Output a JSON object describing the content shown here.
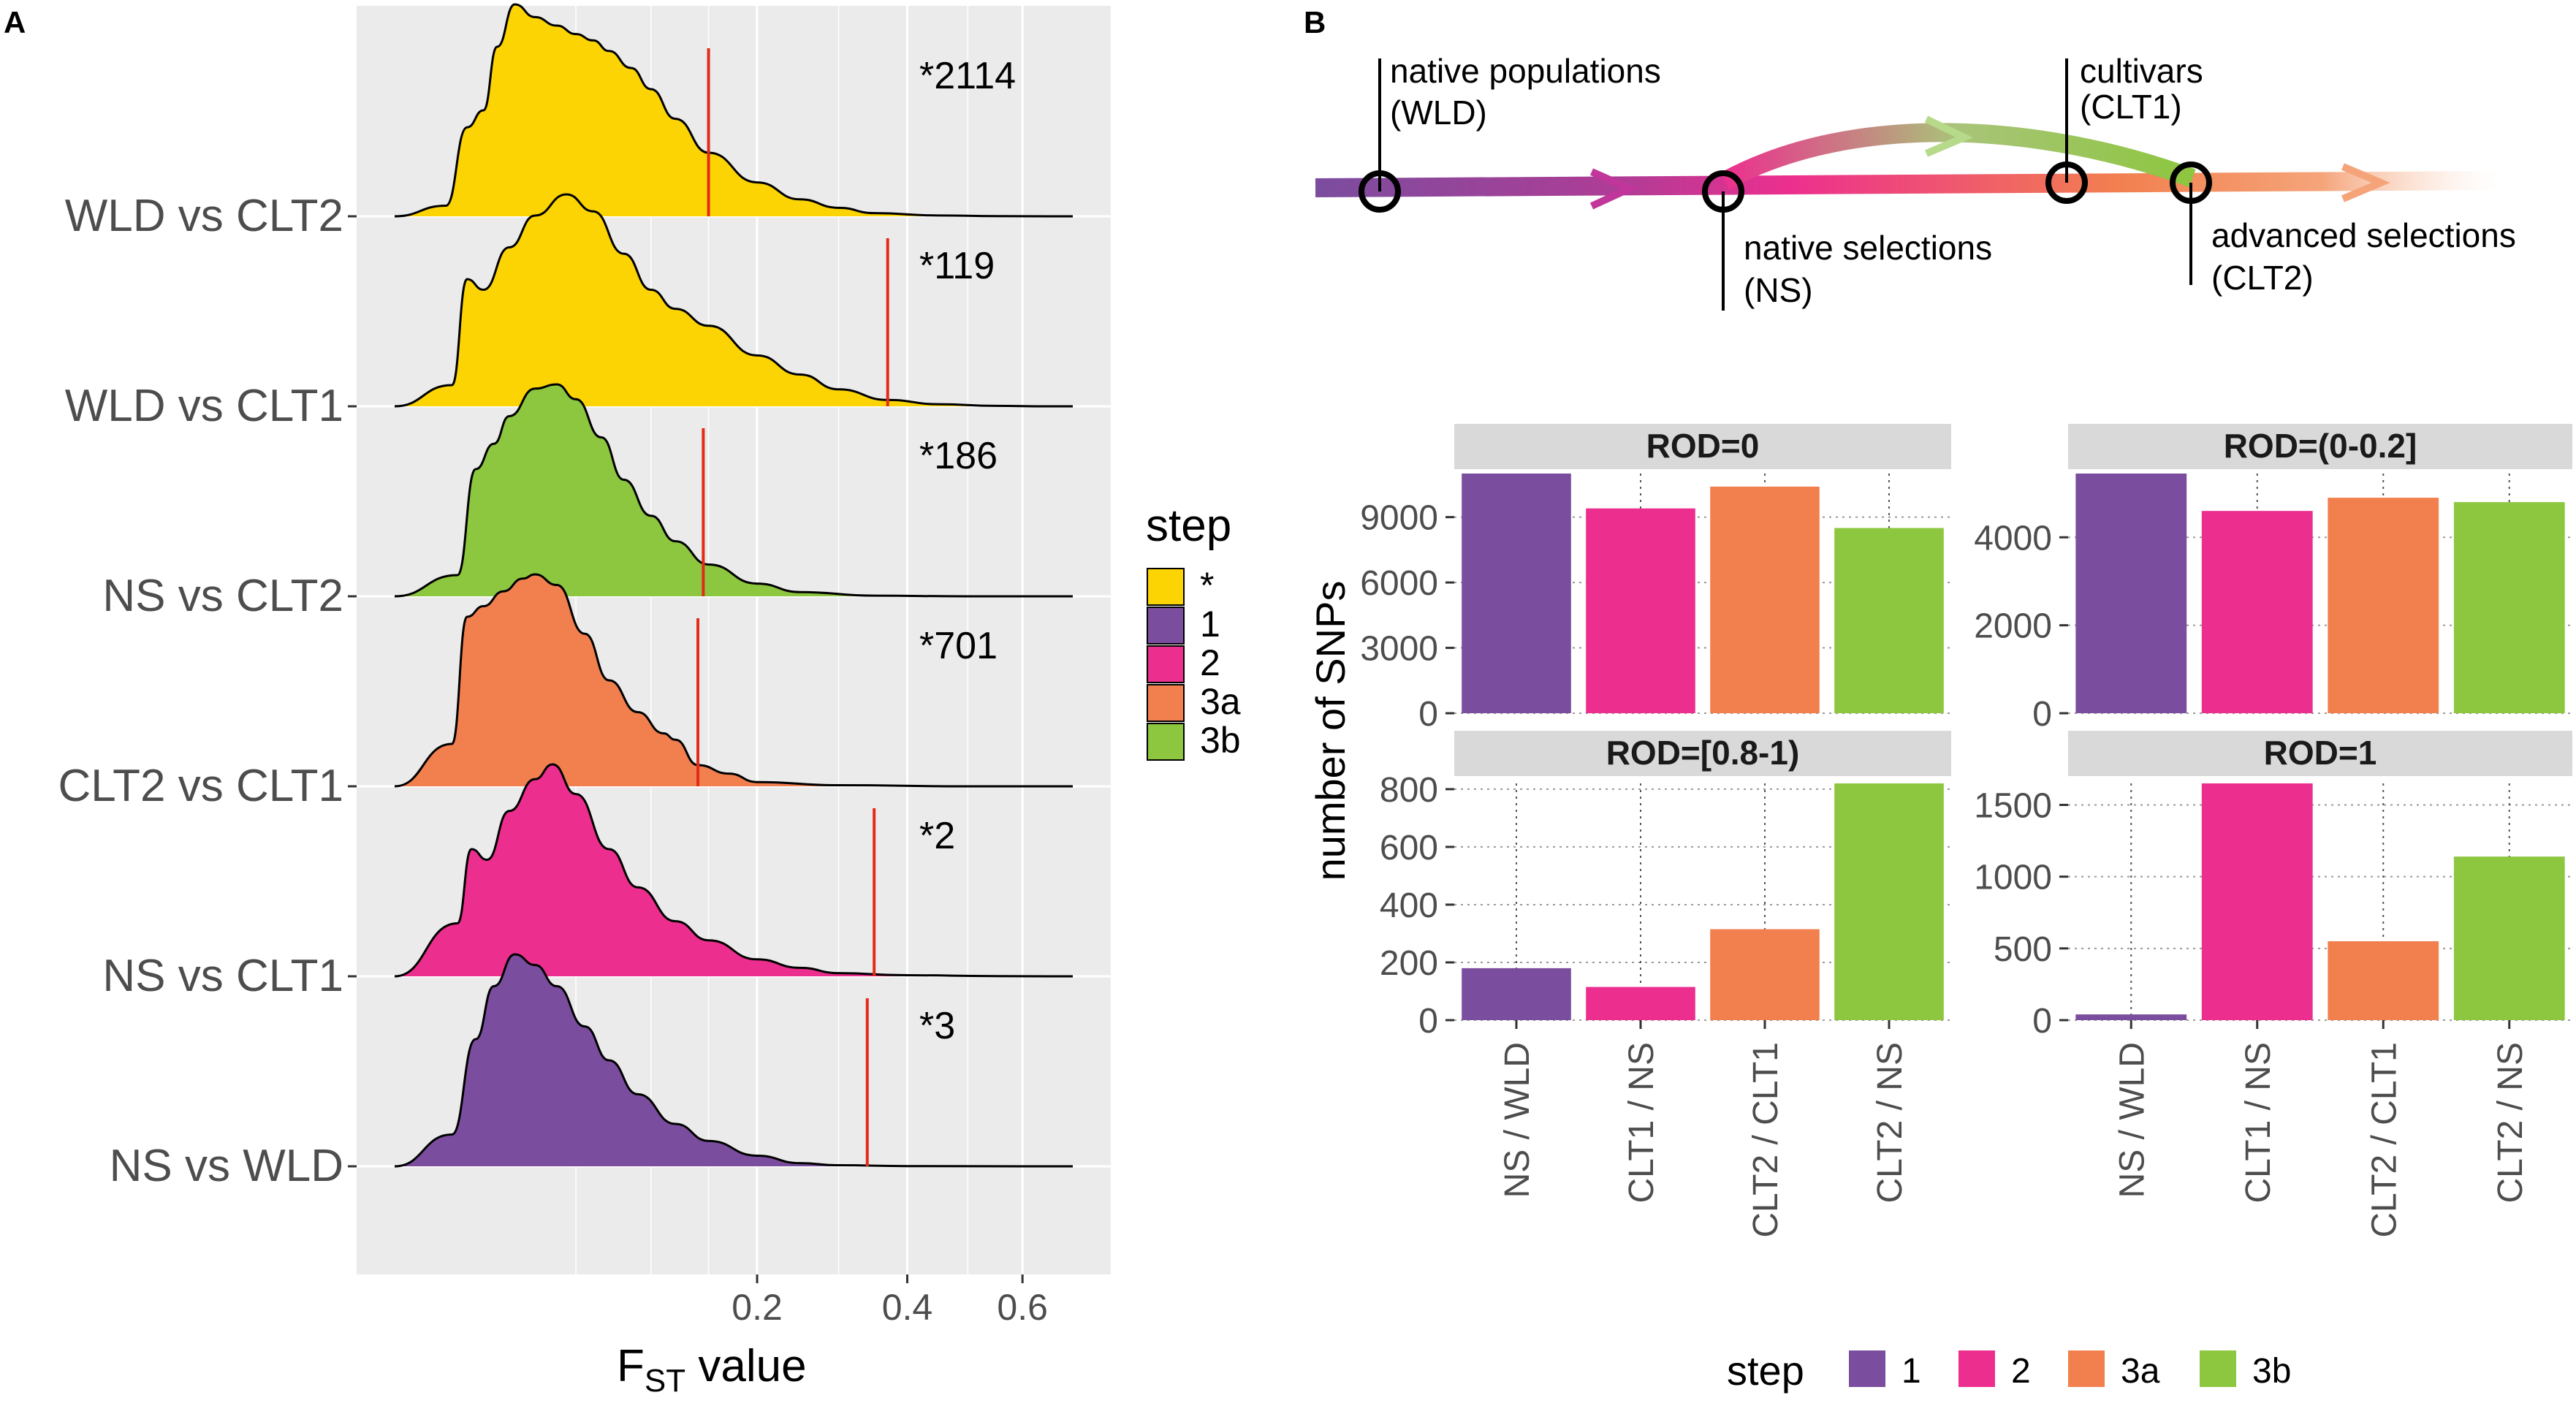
{
  "panel_a": {
    "label": "A",
    "xlabel_main": "F",
    "xlabel_sub": "ST",
    "xlabel_rest": " value",
    "x_ticks": [
      "0.2",
      "0.4",
      "0.6"
    ]
  },
  "panel_b": {
    "label": "B",
    "timeline": {
      "native_populations": "native populations",
      "wld": "(WLD)",
      "cultivars": "cultivars",
      "clt1": "(CLT1)",
      "native_selections": "native selections",
      "ns": "(NS)",
      "advanced_selections": "advanced selections",
      "clt2": "(CLT2)"
    },
    "ylabel": "number of SNPs",
    "legend_title": "step"
  },
  "legend_a": {
    "title": "step",
    "items": [
      {
        "label": "*",
        "color": "#fcd404"
      },
      {
        "label": "1",
        "color": "#7b4d9e"
      },
      {
        "label": "2",
        "color": "#ec2f8e"
      },
      {
        "label": "3a",
        "color": "#f2804f"
      },
      {
        "label": "3b",
        "color": "#8dc63f"
      }
    ]
  },
  "legend_b": {
    "items": [
      {
        "label": "1",
        "color": "#7b4d9e"
      },
      {
        "label": "2",
        "color": "#ec2f8e"
      },
      {
        "label": "3a",
        "color": "#f2804f"
      },
      {
        "label": "3b",
        "color": "#8dc63f"
      }
    ]
  },
  "chart_data": [
    {
      "type": "area",
      "title": "",
      "xlabel": "FST value",
      "x_scale": "sqrt",
      "xlim": [
        0,
        0.7
      ],
      "x_ticks": [
        0.2,
        0.4,
        0.6
      ],
      "series": [
        {
          "name": "WLD vs CLT2",
          "step": "*",
          "color": "#fcd404",
          "threshold": 0.15,
          "annotation": "*2114",
          "peak_x": 0.022,
          "density": [
            [
              0.0,
              0
            ],
            [
              0.004,
              0.05
            ],
            [
              0.008,
              0.42
            ],
            [
              0.012,
              0.5
            ],
            [
              0.016,
              0.8
            ],
            [
              0.022,
              1.0
            ],
            [
              0.03,
              0.94
            ],
            [
              0.04,
              0.9
            ],
            [
              0.05,
              0.86
            ],
            [
              0.06,
              0.83
            ],
            [
              0.07,
              0.78
            ],
            [
              0.085,
              0.7
            ],
            [
              0.1,
              0.6
            ],
            [
              0.12,
              0.46
            ],
            [
              0.15,
              0.3
            ],
            [
              0.2,
              0.16
            ],
            [
              0.25,
              0.08
            ],
            [
              0.3,
              0.04
            ],
            [
              0.35,
              0.015
            ],
            [
              0.45,
              0.004
            ],
            [
              0.55,
              0.001
            ],
            [
              0.65,
              0
            ]
          ]
        },
        {
          "name": "WLD vs CLT1",
          "step": "*",
          "color": "#fcd404",
          "threshold": 0.37,
          "annotation": "*119",
          "peak_x": 0.045,
          "density": [
            [
              0.0,
              0
            ],
            [
              0.005,
              0.1
            ],
            [
              0.008,
              0.6
            ],
            [
              0.012,
              0.55
            ],
            [
              0.02,
              0.75
            ],
            [
              0.03,
              0.9
            ],
            [
              0.045,
              1.0
            ],
            [
              0.06,
              0.92
            ],
            [
              0.08,
              0.72
            ],
            [
              0.1,
              0.55
            ],
            [
              0.12,
              0.46
            ],
            [
              0.15,
              0.38
            ],
            [
              0.2,
              0.24
            ],
            [
              0.25,
              0.15
            ],
            [
              0.3,
              0.08
            ],
            [
              0.37,
              0.03
            ],
            [
              0.45,
              0.01
            ],
            [
              0.55,
              0.002
            ],
            [
              0.65,
              0
            ]
          ]
        },
        {
          "name": "NS vs CLT2",
          "step": "3b",
          "color": "#8dc63f",
          "threshold": 0.145,
          "annotation": "*186",
          "peak_x": 0.038,
          "density": [
            [
              0.0,
              0
            ],
            [
              0.006,
              0.1
            ],
            [
              0.01,
              0.6
            ],
            [
              0.015,
              0.72
            ],
            [
              0.02,
              0.85
            ],
            [
              0.03,
              0.98
            ],
            [
              0.04,
              1.0
            ],
            [
              0.05,
              0.93
            ],
            [
              0.065,
              0.75
            ],
            [
              0.08,
              0.55
            ],
            [
              0.1,
              0.38
            ],
            [
              0.12,
              0.26
            ],
            [
              0.15,
              0.15
            ],
            [
              0.2,
              0.06
            ],
            [
              0.25,
              0.02
            ],
            [
              0.35,
              0.003
            ],
            [
              0.5,
              0
            ],
            [
              0.65,
              0
            ]
          ]
        },
        {
          "name": "CLT2 vs CLT1",
          "step": "3a",
          "color": "#f2804f",
          "threshold": 0.14,
          "annotation": "*701",
          "peak_x": 0.03,
          "density": [
            [
              0.0,
              0
            ],
            [
              0.005,
              0.2
            ],
            [
              0.008,
              0.8
            ],
            [
              0.012,
              0.85
            ],
            [
              0.018,
              0.92
            ],
            [
              0.025,
              0.98
            ],
            [
              0.03,
              1.0
            ],
            [
              0.04,
              0.95
            ],
            [
              0.055,
              0.72
            ],
            [
              0.07,
              0.5
            ],
            [
              0.09,
              0.35
            ],
            [
              0.11,
              0.25
            ],
            [
              0.12,
              0.22
            ],
            [
              0.14,
              0.1
            ],
            [
              0.17,
              0.06
            ],
            [
              0.2,
              0.02
            ],
            [
              0.3,
              0.005
            ],
            [
              0.5,
              0
            ],
            [
              0.65,
              0
            ]
          ]
        },
        {
          "name": "NS vs CLT1",
          "step": "2",
          "color": "#ec2f8e",
          "threshold": 0.35,
          "annotation": "*2",
          "peak_x": 0.038,
          "density": [
            [
              0.0,
              0
            ],
            [
              0.006,
              0.25
            ],
            [
              0.009,
              0.6
            ],
            [
              0.013,
              0.55
            ],
            [
              0.02,
              0.78
            ],
            [
              0.03,
              0.93
            ],
            [
              0.038,
              1.0
            ],
            [
              0.05,
              0.86
            ],
            [
              0.07,
              0.6
            ],
            [
              0.09,
              0.42
            ],
            [
              0.12,
              0.26
            ],
            [
              0.15,
              0.17
            ],
            [
              0.2,
              0.08
            ],
            [
              0.25,
              0.04
            ],
            [
              0.3,
              0.015
            ],
            [
              0.4,
              0.005
            ],
            [
              0.55,
              0.001
            ],
            [
              0.65,
              0
            ]
          ]
        },
        {
          "name": "NS vs WLD",
          "step": "1",
          "color": "#7b4d9e",
          "threshold": 0.34,
          "annotation": "*3",
          "peak_x": 0.022,
          "density": [
            [
              0.0,
              0
            ],
            [
              0.005,
              0.15
            ],
            [
              0.01,
              0.6
            ],
            [
              0.015,
              0.85
            ],
            [
              0.022,
              1.0
            ],
            [
              0.03,
              0.95
            ],
            [
              0.04,
              0.85
            ],
            [
              0.055,
              0.66
            ],
            [
              0.07,
              0.5
            ],
            [
              0.09,
              0.34
            ],
            [
              0.12,
              0.2
            ],
            [
              0.15,
              0.12
            ],
            [
              0.2,
              0.05
            ],
            [
              0.25,
              0.015
            ],
            [
              0.3,
              0.005
            ],
            [
              0.4,
              0.001
            ],
            [
              0.65,
              0
            ]
          ]
        }
      ]
    },
    {
      "type": "bar",
      "title": "ROD=0",
      "categories": [
        "NS / WLD",
        "CLT1 / NS",
        "CLT2 / CLT1",
        "CLT2 / NS"
      ],
      "values": [
        11000,
        9400,
        10400,
        8500
      ],
      "ylim": [
        0,
        11000
      ],
      "y_ticks": [
        0,
        3000,
        6000,
        9000
      ],
      "ylabel": "number of SNPs"
    },
    {
      "type": "bar",
      "title": "ROD=(0-0.2]",
      "categories": [
        "NS / WLD",
        "CLT1 / NS",
        "CLT2 / CLT1",
        "CLT2 / NS"
      ],
      "values": [
        5450,
        4600,
        4900,
        4800
      ],
      "ylim": [
        0,
        5450
      ],
      "y_ticks": [
        0,
        2000,
        4000
      ]
    },
    {
      "type": "bar",
      "title": "ROD=[0.8-1)",
      "categories": [
        "NS / WLD",
        "CLT1 / NS",
        "CLT2 / CLT1",
        "CLT2 / NS"
      ],
      "values": [
        180,
        115,
        315,
        820
      ],
      "ylim": [
        0,
        820
      ],
      "y_ticks": [
        0,
        200,
        400,
        600,
        800
      ]
    },
    {
      "type": "bar",
      "title": "ROD=1",
      "categories": [
        "NS / WLD",
        "CLT1 / NS",
        "CLT2 / CLT1",
        "CLT2 / NS"
      ],
      "values": [
        40,
        1650,
        550,
        1140
      ],
      "ylim": [
        0,
        1650
      ],
      "y_ticks": [
        0,
        500,
        1000,
        1500
      ]
    }
  ]
}
